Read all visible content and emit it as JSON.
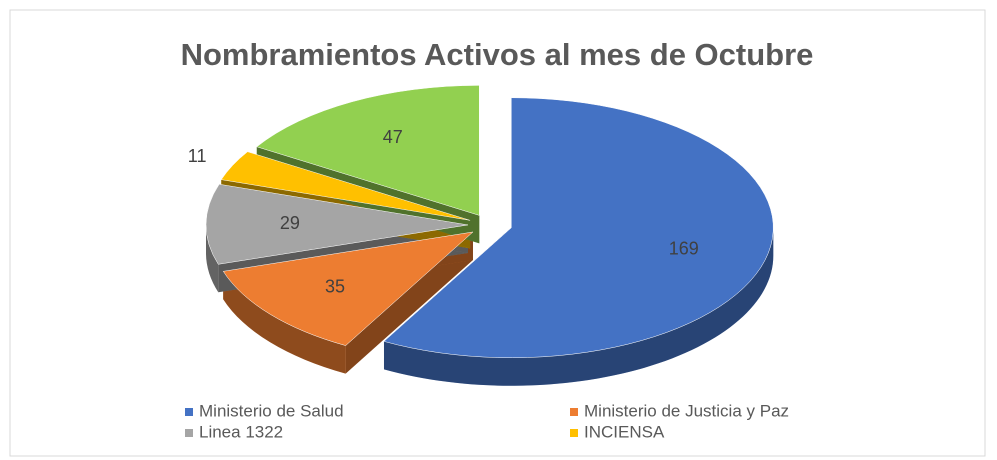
{
  "chart_data": {
    "type": "pie3d",
    "title": "Nombramientos Activos al mes de Octubre",
    "categories": [
      "Ministerio de Salud",
      "Ministerio de Justicia y Paz",
      "Linea 1322",
      "INCIENSA",
      null
    ],
    "values": [
      169,
      35,
      29,
      11,
      47
    ],
    "colors": [
      "#4472c4",
      "#ed7d31",
      "#a5a5a5",
      "#ffc000",
      "#92d050"
    ],
    "legend": "bottom"
  }
}
